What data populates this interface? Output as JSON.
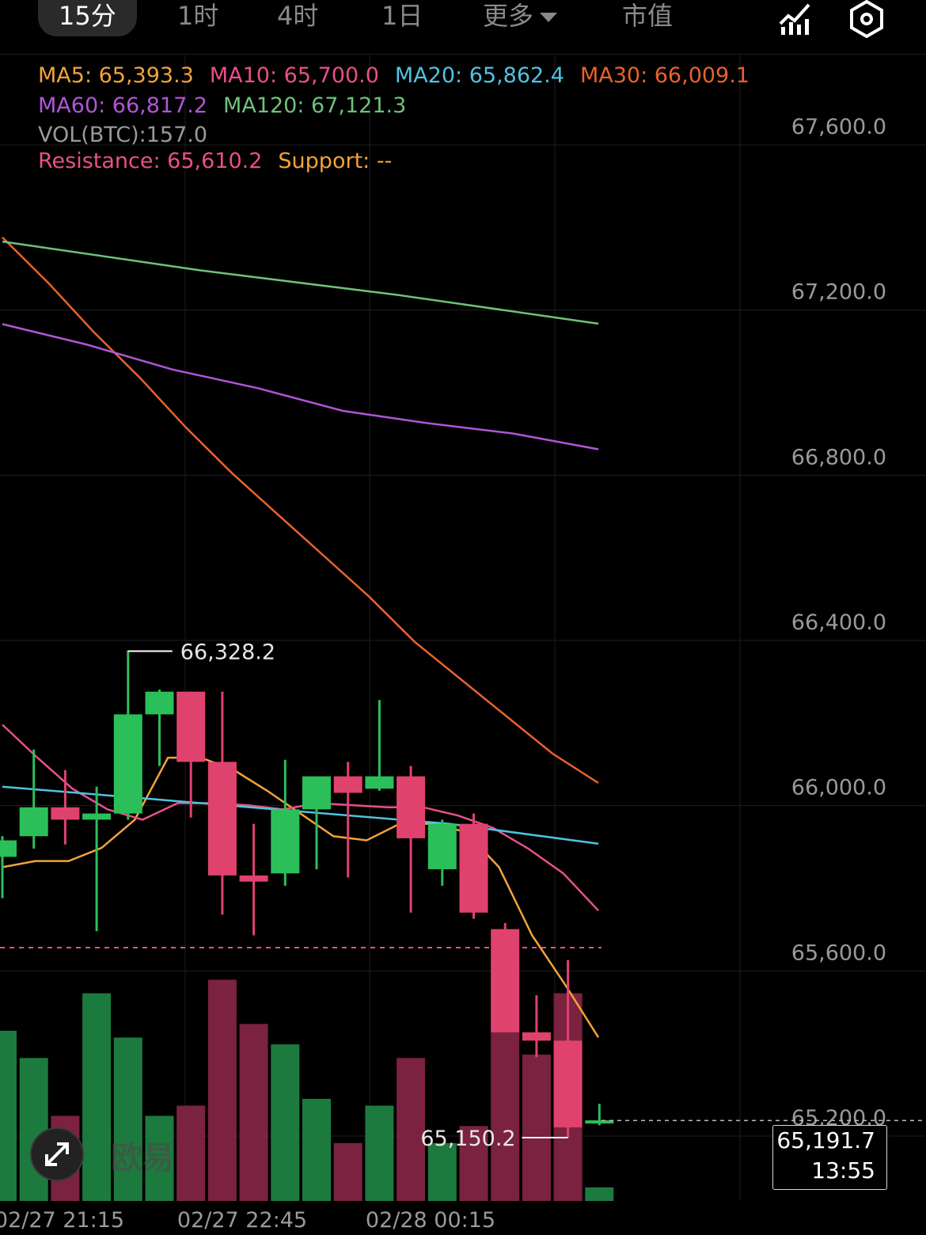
{
  "tabs": {
    "t15": "15分",
    "t1h": "1时",
    "t4h": "4时",
    "t1d": "1日",
    "more": "更多",
    "mcap": "市值"
  },
  "icons": {
    "indicator": "chart-indicator-icon",
    "settings": "settings-hexagon-icon",
    "expand": "expand-arrows-icon"
  },
  "legend": {
    "ma5": "MA5: 65,393.3",
    "ma10": "MA10: 65,700.0",
    "ma20": "MA20: 65,862.4",
    "ma30": "MA30: 66,009.1",
    "ma60": "MA60: 66,817.2",
    "ma120": "MA120: 67,121.3",
    "vol": "VOL(BTC):157.0",
    "resistance": "Resistance: 65,610.2",
    "support": "Support: --"
  },
  "colors": {
    "up": "#2bbf5a",
    "down": "#e0426e",
    "upVol": "#1d7a3e",
    "downVol": "#7a2240",
    "ma5": "#f2a33a",
    "ma10": "#e8508a",
    "ma20": "#4fc3e0",
    "ma30": "#e8622e",
    "ma60": "#b056d6",
    "ma120": "#6ec27a",
    "grid": "#1e1e1e",
    "resistance": "#e8508a"
  },
  "price_tag": {
    "price": "65,191.7",
    "countdown": "13:55"
  },
  "watermark": "欧易",
  "chart_data": {
    "type": "candlestick",
    "interval": "15分",
    "ylim": [
      65000,
      67800
    ],
    "y_ticks": [
      "67,600.0",
      "67,200.0",
      "66,800.0",
      "66,400.0",
      "66,000.0",
      "65,600.0",
      "65,200.0"
    ],
    "y_tick_values": [
      67600,
      67200,
      66800,
      66400,
      66000,
      65600,
      65200
    ],
    "x_ticks": [
      "02/27 21:15",
      "02/27 22:45",
      "02/28 00:15"
    ],
    "x_tick_index": [
      0,
      6,
      12
    ],
    "high_label": "66,328.2",
    "low_label": "65,150.2",
    "last_price": 65191.7,
    "resistance": 65610.2,
    "candles": [
      {
        "o": 65830,
        "h": 65880,
        "c": 65870,
        "l": 65730
      },
      {
        "o": 65880,
        "h": 66090,
        "c": 65950,
        "l": 65850
      },
      {
        "o": 65950,
        "h": 66040,
        "c": 65920,
        "l": 65860
      },
      {
        "o": 65920,
        "h": 66000,
        "c": 65935,
        "l": 65650
      },
      {
        "o": 65935,
        "h": 66330,
        "c": 66175,
        "l": 65920
      },
      {
        "o": 66175,
        "h": 66235,
        "c": 66230,
        "l": 66050
      },
      {
        "o": 66230,
        "h": 66230,
        "c": 66060,
        "l": 65925
      },
      {
        "o": 66060,
        "h": 66230,
        "c": 65785,
        "l": 65690
      },
      {
        "o": 65785,
        "h": 65910,
        "c": 65770,
        "l": 65640
      },
      {
        "o": 65790,
        "h": 66065,
        "c": 65945,
        "l": 65760
      },
      {
        "o": 65945,
        "h": 66020,
        "c": 66025,
        "l": 65800
      },
      {
        "o": 66025,
        "h": 66060,
        "c": 65985,
        "l": 65780
      },
      {
        "o": 65995,
        "h": 66210,
        "c": 66025,
        "l": 65990
      },
      {
        "o": 66025,
        "h": 66050,
        "c": 65875,
        "l": 65695
      },
      {
        "o": 65800,
        "h": 65920,
        "c": 65910,
        "l": 65760
      },
      {
        "o": 65910,
        "h": 65935,
        "c": 65695,
        "l": 65680
      },
      {
        "o": 65655,
        "h": 65670,
        "c": 65405,
        "l": 65405
      },
      {
        "o": 65405,
        "h": 65495,
        "c": 65385,
        "l": 65345
      },
      {
        "o": 65385,
        "h": 65580,
        "c": 65175,
        "l": 65150
      },
      {
        "o": 65192,
        "h": 65232,
        "c": 65192,
        "l": 65180
      }
    ],
    "volume_rel": [
      0.5,
      0.42,
      0.25,
      0.61,
      0.48,
      0.25,
      0.28,
      0.65,
      0.52,
      0.46,
      0.3,
      0.17,
      0.28,
      0.42,
      0.17,
      0.22,
      0.71,
      0.43,
      0.61,
      0.04
    ],
    "ma_series": [
      {
        "name": "MA5",
        "color_key": "ma5",
        "values": [
          65805,
          65820,
          65820,
          65852,
          65920,
          66070,
          66070,
          66040,
          65990,
          65935,
          65880,
          65870,
          65910,
          65910,
          65890,
          65805,
          65640,
          65520,
          65393
        ]
      },
      {
        "name": "MA10",
        "color_key": "ma10",
        "values": [
          66150,
          66070,
          65995,
          65945,
          65920,
          65960,
          65960,
          65955,
          65945,
          65960,
          65955,
          65950,
          65950,
          65930,
          65900,
          65850,
          65790,
          65700
        ]
      },
      {
        "name": "MA20",
        "color_key": "ma20",
        "values": [
          66000,
          65970,
          65940,
          65910,
          65862
        ]
      },
      {
        "name": "MA30",
        "color_key": "ma30",
        "values": [
          67330,
          67220,
          67100,
          66990,
          66870,
          66760,
          66660,
          66560,
          66460,
          66350,
          66260,
          66170,
          66080,
          66009
        ]
      },
      {
        "name": "MA60",
        "color_key": "ma60",
        "values": [
          67120,
          67070,
          67010,
          66965,
          66910,
          66880,
          66855,
          66817
        ]
      },
      {
        "name": "MA120",
        "color_key": "ma120",
        "values": [
          67320,
          67250,
          67190,
          67121
        ]
      }
    ]
  }
}
